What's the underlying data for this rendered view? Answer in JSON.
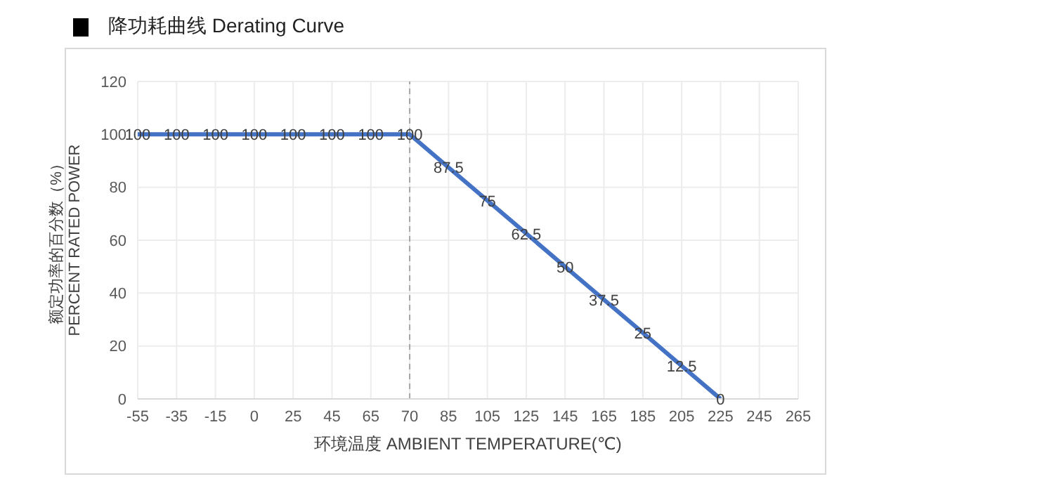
{
  "chart_data": {
    "type": "line",
    "title": "降功耗曲线 Derating Curve",
    "xlabel": "环境温度 AMBIENT TEMPERATURE(℃)",
    "ylabel": "额定功率的百分数（%）\nPERCENT RATED POWER",
    "categories": [
      "-55",
      "-35",
      "-15",
      "0",
      "25",
      "45",
      "65",
      "70",
      "85",
      "105",
      "125",
      "145",
      "165",
      "185",
      "205",
      "225",
      "245",
      "265"
    ],
    "series": [
      {
        "color": "#4472c4",
        "values": [
          100,
          100,
          100,
          100,
          100,
          100,
          100,
          100,
          87.5,
          75,
          62.5,
          50,
          37.5,
          25,
          12.5,
          0,
          null,
          null
        ]
      }
    ],
    "ylim": [
      0,
      120
    ],
    "yticks": [
      0,
      20,
      40,
      60,
      80,
      100,
      120
    ],
    "grid": true,
    "data_labels": true,
    "marker": "none",
    "ref_lines": [
      {
        "axis": "x",
        "value": "70",
        "color": "#a6a6a6",
        "line_style": "dashed"
      }
    ]
  }
}
